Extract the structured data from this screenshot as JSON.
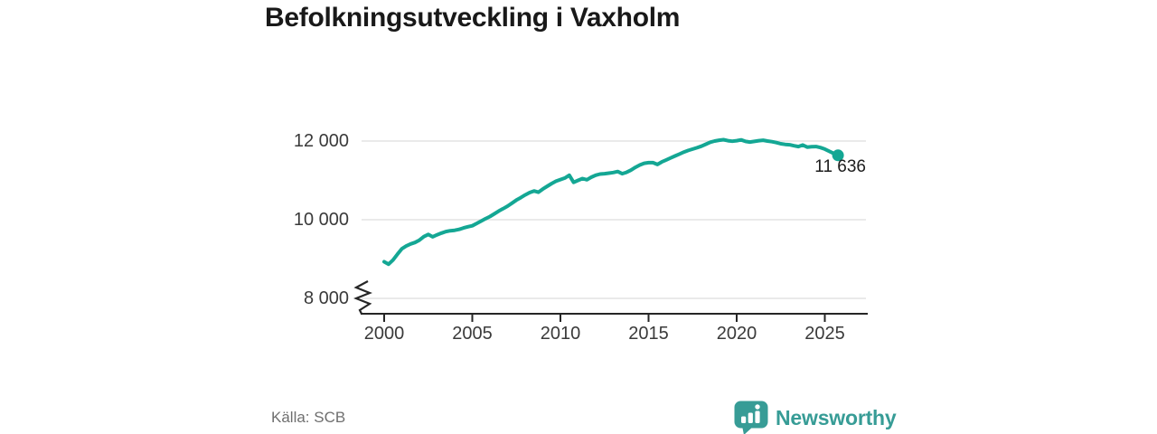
{
  "title": "Befolkningsutveckling i Vaxholm",
  "source": "Källa: SCB",
  "logo": {
    "text": "Newsworthy",
    "icon": "bar-chart-speech-bubble-icon",
    "color": "#379c96"
  },
  "colors": {
    "line": "#14a794",
    "grid": "#e3e3e3",
    "axis": "#262626",
    "tick_label": "#3a3a3a",
    "title": "#191919",
    "annotation": "#1c1c1c",
    "source": "#6f6f6f"
  },
  "chart_data": {
    "type": "line",
    "title": "Befolkningsutveckling i Vaxholm",
    "series_name": "Befolkning i Vaxholm",
    "xlabel": "",
    "ylabel": "",
    "xlim": [
      2000,
      2027.5
    ],
    "ylim": [
      8000,
      12400
    ],
    "axis_break_at_bottom": true,
    "grid": "horizontal",
    "legend": "none",
    "xticks": [
      2000,
      2005,
      2010,
      2015,
      2020,
      2025
    ],
    "yticks": [
      {
        "value": 8000,
        "label": "8 000"
      },
      {
        "value": 10000,
        "label": "10 000"
      },
      {
        "value": 12000,
        "label": "12 000"
      }
    ],
    "last_value": 11636,
    "last_point_label": "11 636",
    "points": [
      [
        2000.0,
        8930
      ],
      [
        2000.25,
        8870
      ],
      [
        2000.5,
        8975
      ],
      [
        2000.75,
        9120
      ],
      [
        2001.0,
        9260
      ],
      [
        2001.25,
        9330
      ],
      [
        2001.5,
        9385
      ],
      [
        2001.75,
        9420
      ],
      [
        2002.0,
        9480
      ],
      [
        2002.25,
        9570
      ],
      [
        2002.5,
        9625
      ],
      [
        2002.75,
        9565
      ],
      [
        2003.0,
        9615
      ],
      [
        2003.25,
        9660
      ],
      [
        2003.5,
        9700
      ],
      [
        2003.75,
        9720
      ],
      [
        2004.0,
        9730
      ],
      [
        2004.25,
        9755
      ],
      [
        2004.5,
        9790
      ],
      [
        2004.75,
        9820
      ],
      [
        2005.0,
        9845
      ],
      [
        2005.25,
        9905
      ],
      [
        2005.5,
        9965
      ],
      [
        2005.75,
        10025
      ],
      [
        2006.0,
        10080
      ],
      [
        2006.25,
        10150
      ],
      [
        2006.5,
        10220
      ],
      [
        2006.75,
        10280
      ],
      [
        2007.0,
        10345
      ],
      [
        2007.25,
        10420
      ],
      [
        2007.5,
        10500
      ],
      [
        2007.75,
        10560
      ],
      [
        2008.0,
        10630
      ],
      [
        2008.25,
        10690
      ],
      [
        2008.5,
        10730
      ],
      [
        2008.75,
        10700
      ],
      [
        2009.0,
        10780
      ],
      [
        2009.25,
        10850
      ],
      [
        2009.5,
        10920
      ],
      [
        2009.75,
        10980
      ],
      [
        2010.0,
        11020
      ],
      [
        2010.25,
        11060
      ],
      [
        2010.5,
        11130
      ],
      [
        2010.75,
        10950
      ],
      [
        2011.0,
        11000
      ],
      [
        2011.25,
        11045
      ],
      [
        2011.5,
        11015
      ],
      [
        2011.75,
        11080
      ],
      [
        2012.0,
        11130
      ],
      [
        2012.25,
        11160
      ],
      [
        2012.5,
        11170
      ],
      [
        2012.75,
        11185
      ],
      [
        2013.0,
        11200
      ],
      [
        2013.25,
        11225
      ],
      [
        2013.5,
        11170
      ],
      [
        2013.75,
        11205
      ],
      [
        2014.0,
        11260
      ],
      [
        2014.25,
        11330
      ],
      [
        2014.5,
        11390
      ],
      [
        2014.75,
        11435
      ],
      [
        2015.0,
        11450
      ],
      [
        2015.25,
        11450
      ],
      [
        2015.5,
        11405
      ],
      [
        2015.75,
        11470
      ],
      [
        2016.0,
        11520
      ],
      [
        2016.25,
        11570
      ],
      [
        2016.5,
        11620
      ],
      [
        2016.75,
        11670
      ],
      [
        2017.0,
        11720
      ],
      [
        2017.25,
        11760
      ],
      [
        2017.5,
        11795
      ],
      [
        2017.75,
        11830
      ],
      [
        2018.0,
        11870
      ],
      [
        2018.25,
        11920
      ],
      [
        2018.5,
        11970
      ],
      [
        2018.75,
        12000
      ],
      [
        2019.0,
        12020
      ],
      [
        2019.25,
        12035
      ],
      [
        2019.5,
        12010
      ],
      [
        2019.75,
        11995
      ],
      [
        2020.0,
        12010
      ],
      [
        2020.25,
        12030
      ],
      [
        2020.5,
        11990
      ],
      [
        2020.75,
        11975
      ],
      [
        2021.0,
        11990
      ],
      [
        2021.25,
        12010
      ],
      [
        2021.5,
        12020
      ],
      [
        2021.75,
        12000
      ],
      [
        2022.0,
        11985
      ],
      [
        2022.25,
        11960
      ],
      [
        2022.5,
        11930
      ],
      [
        2022.75,
        11915
      ],
      [
        2023.0,
        11905
      ],
      [
        2023.25,
        11880
      ],
      [
        2023.5,
        11860
      ],
      [
        2023.75,
        11900
      ],
      [
        2024.0,
        11845
      ],
      [
        2024.25,
        11855
      ],
      [
        2024.5,
        11860
      ],
      [
        2024.75,
        11835
      ],
      [
        2025.0,
        11795
      ],
      [
        2025.25,
        11740
      ],
      [
        2025.5,
        11685
      ],
      [
        2025.75,
        11636
      ]
    ]
  }
}
